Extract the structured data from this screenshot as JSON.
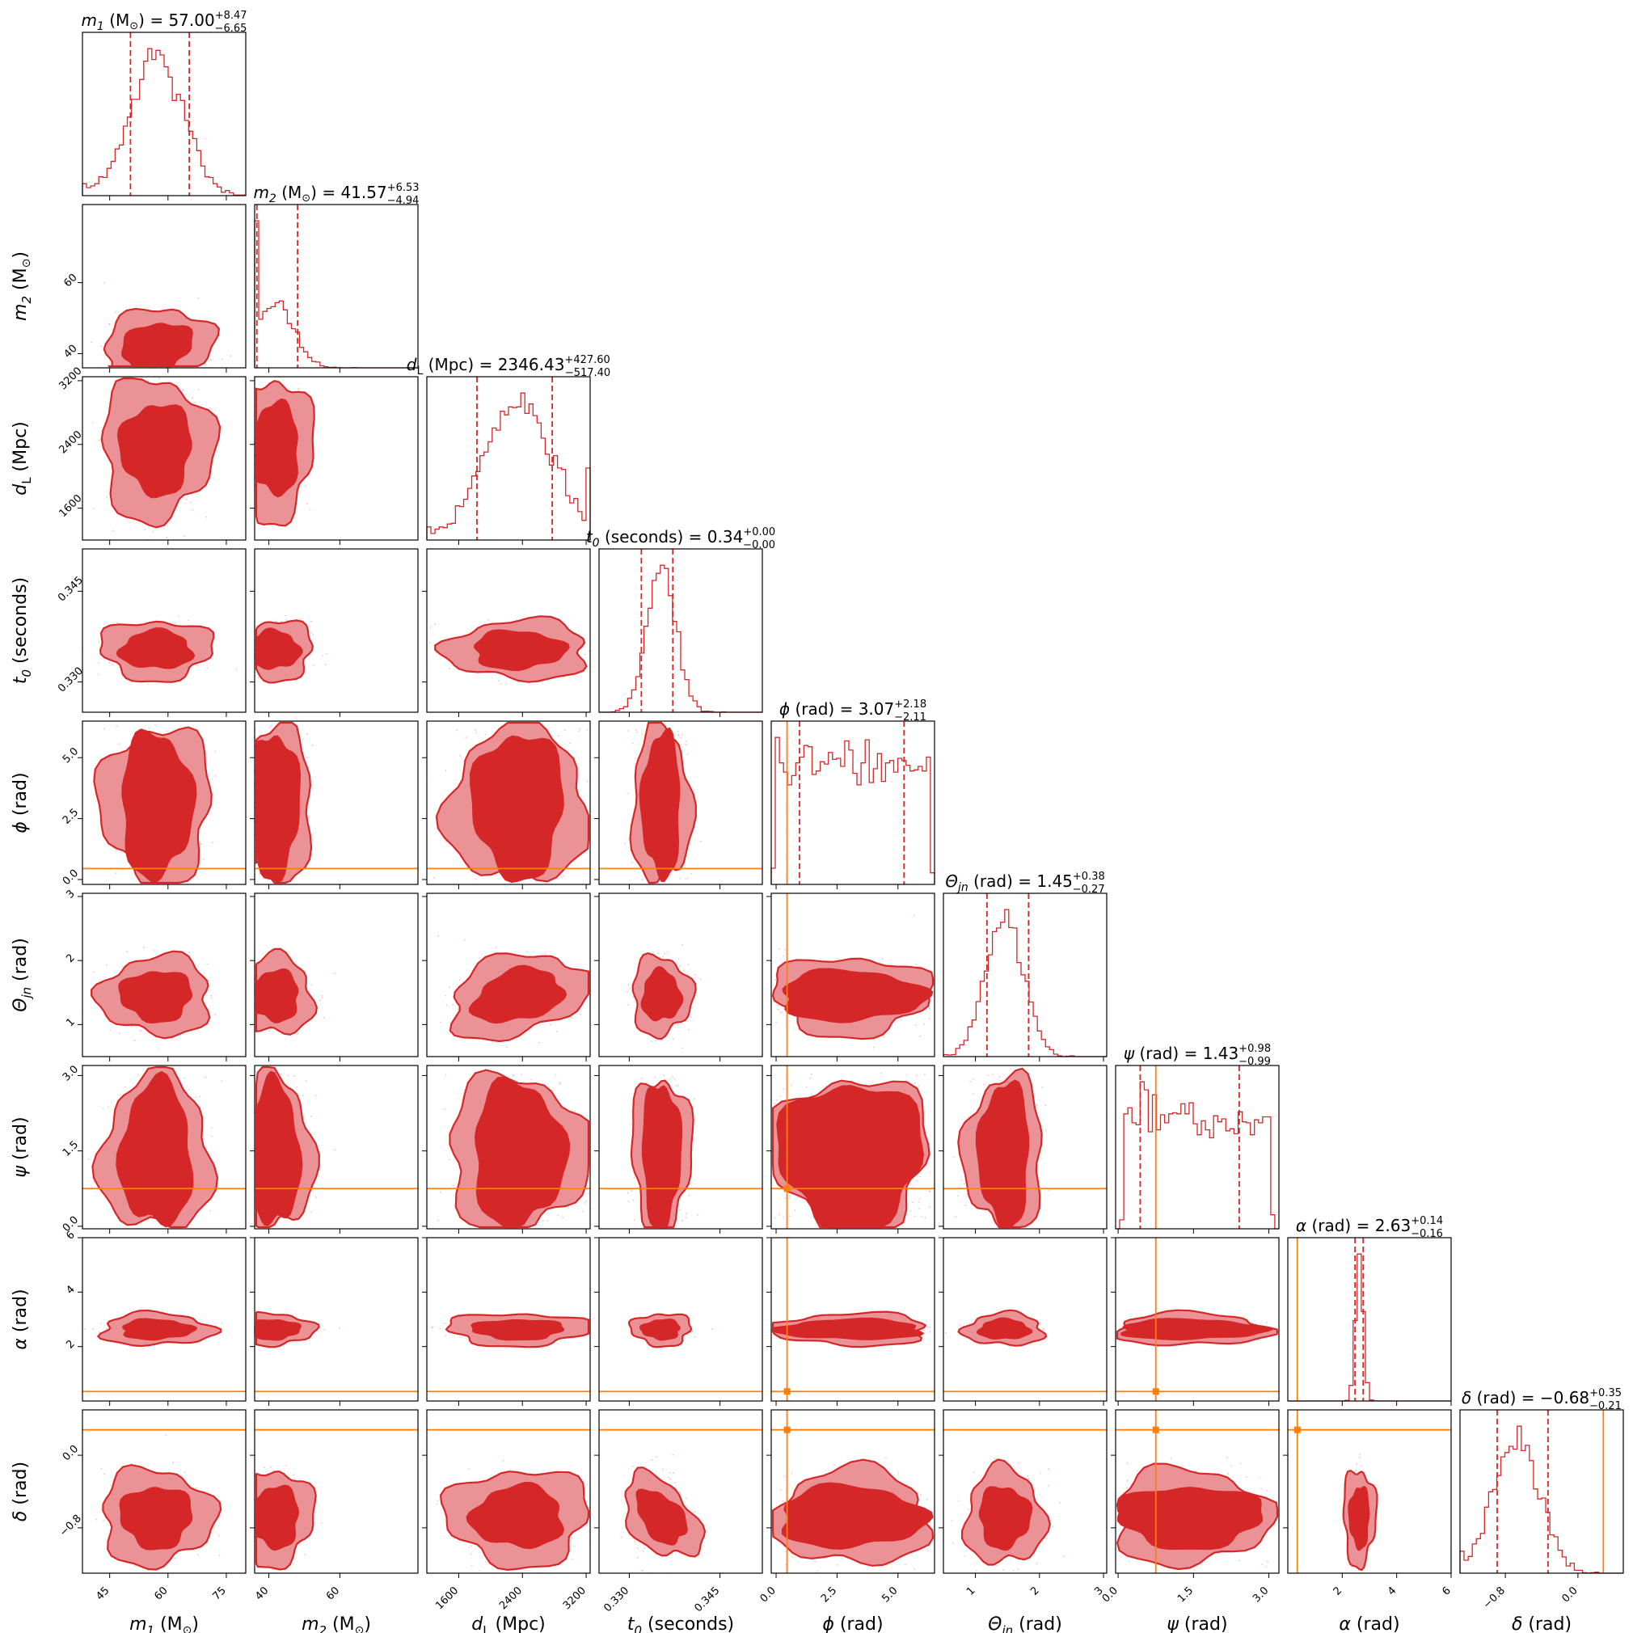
{
  "chart_data": {
    "type": "corner",
    "parameters": [
      {
        "key": "m1",
        "symbol": "m",
        "sub": "1",
        "unit": "(M",
        "unit_sub": "⊙",
        "unit_close": ")",
        "ticks": [
          45,
          60,
          75
        ],
        "tick_labels": [
          "45",
          "60",
          "75"
        ],
        "range": [
          38,
          80
        ],
        "title": {
          "value": "57.00",
          "plus": "+8.47",
          "minus": "−6.65"
        },
        "median": 57.0,
        "q_low": 50.35,
        "q_high": 65.47,
        "axis_label": "m₁ (M⊙)"
      },
      {
        "key": "m2",
        "symbol": "m",
        "sub": "2",
        "unit": "(M",
        "unit_sub": "⊙",
        "unit_close": ")",
        "ticks": [
          40,
          60
        ],
        "tick_labels": [
          "40",
          "60"
        ],
        "range": [
          36,
          82
        ],
        "title": {
          "value": "41.57",
          "plus": "+6.53",
          "minus": "−4.94"
        },
        "median": 41.57,
        "q_low": 36.63,
        "q_high": 48.1,
        "axis_label": "m₂ (M⊙)"
      },
      {
        "key": "dL",
        "symbol": "d",
        "sub": "L",
        "unit": "(Mpc)",
        "unit_sub": "",
        "unit_close": "",
        "ticks": [
          1600,
          2400,
          3200
        ],
        "tick_labels": [
          "1600",
          "2400",
          "3200"
        ],
        "range": [
          1200,
          3250
        ],
        "title": {
          "value": "2346.43",
          "plus": "+427.60",
          "minus": "−517.40"
        },
        "median": 2346.43,
        "q_low": 1829.03,
        "q_high": 2774.03,
        "axis_label": "dL (Mpc)"
      },
      {
        "key": "t0",
        "symbol": "t",
        "sub": "0",
        "unit": "(seconds)",
        "unit_sub": "",
        "unit_close": "",
        "ticks": [
          0.33,
          0.345
        ],
        "tick_labels": [
          "0.330",
          "0.345"
        ],
        "range": [
          0.325,
          0.352
        ],
        "title": {
          "value": "0.34",
          "plus": "+0.00",
          "minus": "−0.00"
        },
        "median": 0.3353,
        "q_low": 0.332,
        "q_high": 0.3372,
        "axis_label": "t0 (seconds)"
      },
      {
        "key": "phi",
        "symbol": "ϕ",
        "sub": "",
        "unit": "(rad)",
        "unit_sub": "",
        "unit_close": "",
        "ticks": [
          0,
          2.5,
          5.0
        ],
        "tick_labels": [
          "0.0",
          "2.5",
          "5.0"
        ],
        "range": [
          -0.2,
          6.5
        ],
        "title": {
          "value": "3.07",
          "plus": "+2.18",
          "minus": "−2.11"
        },
        "median": 3.07,
        "q_low": 0.96,
        "q_high": 5.25,
        "axis_label": "ϕ (rad)"
      },
      {
        "key": "theta",
        "symbol": "Θ",
        "sub": "jn",
        "unit": "(rad)",
        "unit_sub": "",
        "unit_close": "",
        "ticks": [
          1,
          2,
          3
        ],
        "tick_labels": [
          "1",
          "2",
          "3"
        ],
        "range": [
          0.5,
          3.05
        ],
        "title": {
          "value": "1.45",
          "plus": "+0.38",
          "minus": "−0.27"
        },
        "median": 1.45,
        "q_low": 1.18,
        "q_high": 1.83,
        "axis_label": "Θjn (rad)"
      },
      {
        "key": "psi",
        "symbol": "ψ",
        "sub": "",
        "unit": "(rad)",
        "unit_sub": "",
        "unit_close": "",
        "ticks": [
          0.0,
          1.5,
          3.0
        ],
        "tick_labels": [
          "0.0",
          "1.5",
          "3.0"
        ],
        "range": [
          -0.05,
          3.2
        ],
        "title": {
          "value": "1.43",
          "plus": "+0.98",
          "minus": "−0.99"
        },
        "median": 1.43,
        "q_low": 0.44,
        "q_high": 2.41,
        "axis_label": "ψ (rad)"
      },
      {
        "key": "alpha",
        "symbol": "α",
        "sub": "",
        "unit": "(rad)",
        "unit_sub": "",
        "unit_close": "",
        "ticks": [
          2,
          4,
          6
        ],
        "tick_labels": [
          "2",
          "4",
          "6"
        ],
        "range": [
          0,
          6.0
        ],
        "title": {
          "value": "2.63",
          "plus": "+0.14",
          "minus": "−0.16"
        },
        "median": 2.63,
        "q_low": 2.47,
        "q_high": 2.77,
        "axis_label": "α (rad)"
      },
      {
        "key": "delta",
        "symbol": "δ",
        "sub": "",
        "unit": "(rad)",
        "unit_sub": "",
        "unit_close": "",
        "ticks": [
          -0.8,
          0.0
        ],
        "tick_labels": [
          "−0.8",
          "0.0"
        ],
        "range": [
          -1.3,
          0.5
        ],
        "title": {
          "value": "−0.68",
          "plus": "+0.35",
          "minus": "−0.21"
        },
        "median": -0.68,
        "q_low": -0.89,
        "q_high": -0.33,
        "axis_label": "δ (rad)"
      }
    ],
    "truth": {
      "phi": 0.45,
      "psi": 0.75,
      "alpha": 0.35,
      "delta": 0.28
    },
    "credible_levels": [
      "39%",
      "86%"
    ],
    "colors": {
      "posterior": "#d62728",
      "inner_fill": "#d62728",
      "outer_fill": "#eb9297",
      "truth": "#ff7f0e",
      "scatter": "#f2a5a8"
    }
  }
}
